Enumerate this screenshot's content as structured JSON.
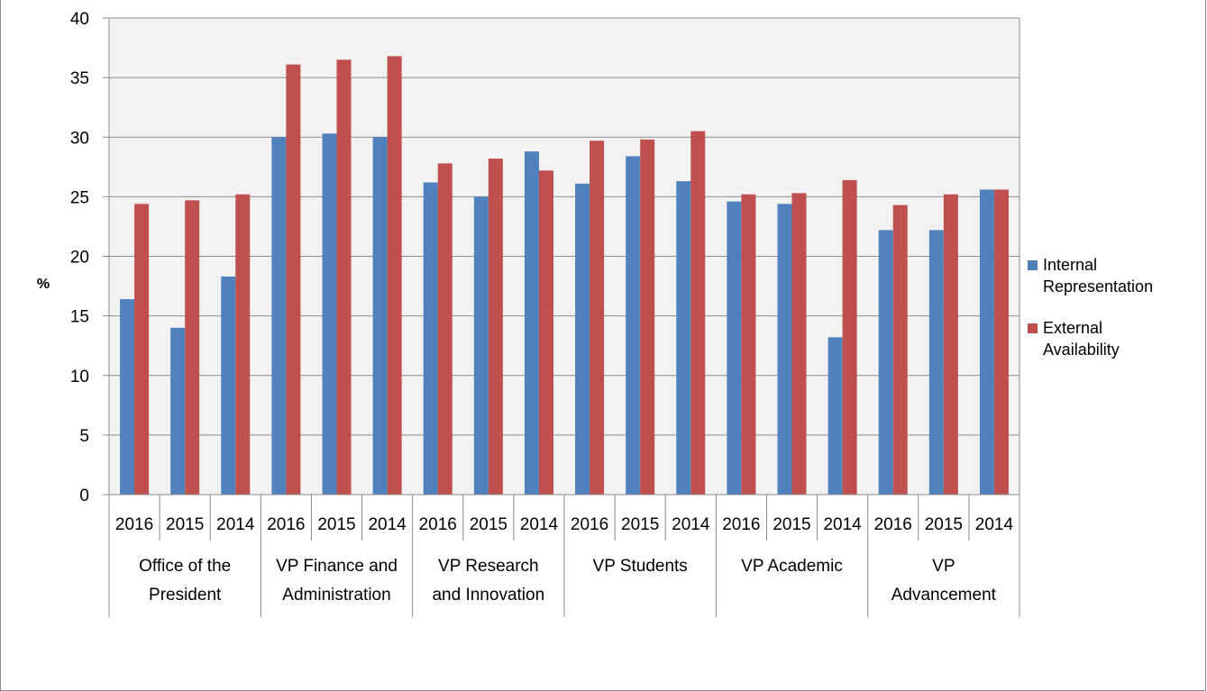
{
  "chart_data": {
    "type": "bar",
    "title": "",
    "xlabel": "",
    "ylabel": "%",
    "ylim": [
      0,
      40
    ],
    "yticks": [
      0,
      5,
      10,
      15,
      20,
      25,
      30,
      35,
      40
    ],
    "grid": true,
    "legend_position": "right",
    "groups": [
      {
        "lines": [
          "Office of the",
          "President"
        ],
        "years": [
          "2016",
          "2015",
          "2014"
        ]
      },
      {
        "lines": [
          "VP Finance and",
          "Administration"
        ],
        "years": [
          "2016",
          "2015",
          "2014"
        ]
      },
      {
        "lines": [
          "VP Research",
          "and Innovation"
        ],
        "years": [
          "2016",
          "2015",
          "2014"
        ]
      },
      {
        "lines": [
          "VP Students"
        ],
        "years": [
          "2016",
          "2015",
          "2014"
        ]
      },
      {
        "lines": [
          "VP Academic"
        ],
        "years": [
          "2016",
          "2015",
          "2014"
        ]
      },
      {
        "lines": [
          "VP",
          "Advancement"
        ],
        "years": [
          "2016",
          "2015",
          "2014"
        ]
      }
    ],
    "series": [
      {
        "name": "Internal Representation",
        "legend_lines": [
          "Internal",
          "Representation"
        ],
        "color": "#4f81bd",
        "values": [
          16.4,
          14.0,
          18.3,
          30.0,
          30.3,
          30.0,
          26.2,
          25.0,
          28.8,
          26.1,
          28.4,
          26.3,
          24.6,
          24.4,
          13.2,
          22.2,
          22.2,
          25.6
        ]
      },
      {
        "name": "External Availability",
        "legend_lines": [
          "External",
          "Availability"
        ],
        "color": "#c0504d",
        "values": [
          24.4,
          24.7,
          25.2,
          36.1,
          36.5,
          36.8,
          27.8,
          28.2,
          27.2,
          29.7,
          29.8,
          30.5,
          25.2,
          25.3,
          26.4,
          24.3,
          25.2,
          25.6
        ]
      }
    ]
  }
}
